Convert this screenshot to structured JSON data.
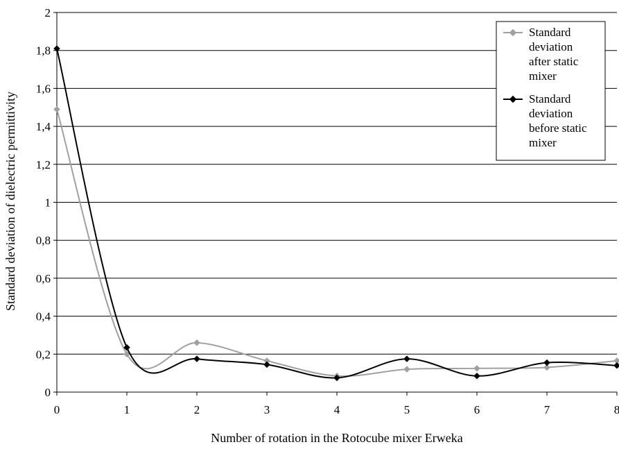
{
  "chart_data": {
    "type": "line",
    "title": "",
    "xlabel": "Number of rotation in the Rotocube mixer Erweka",
    "ylabel": "Standard deviation of dielectric permittivity",
    "x": [
      0,
      1,
      2,
      3,
      4,
      5,
      6,
      7,
      8
    ],
    "xticks": [
      "0",
      "1",
      "2",
      "3",
      "4",
      "5",
      "6",
      "7",
      "8"
    ],
    "yticks": [
      "0",
      "0,2",
      "0,4",
      "0,6",
      "0,8",
      "1",
      "1,2",
      "1,4",
      "1,6",
      "1,8",
      "2"
    ],
    "ylim": [
      0,
      2
    ],
    "xlim": [
      0,
      8
    ],
    "grid": "horizontal",
    "legend_position": "top-right",
    "series": [
      {
        "name": "Standard deviation after static mixer",
        "name_lines": [
          "Standard",
          "deviation",
          "after static",
          "mixer"
        ],
        "color": "#a0a0a0",
        "marker": "diamond",
        "values": [
          1.49,
          0.2,
          0.26,
          0.165,
          0.085,
          0.12,
          0.125,
          0.13,
          0.165
        ]
      },
      {
        "name": "Standard deviation before static mixer",
        "name_lines": [
          "Standard",
          "deviation",
          "before static",
          "mixer"
        ],
        "color": "#000000",
        "marker": "diamond",
        "values": [
          1.81,
          0.235,
          0.175,
          0.145,
          0.075,
          0.175,
          0.085,
          0.155,
          0.14
        ]
      }
    ]
  }
}
